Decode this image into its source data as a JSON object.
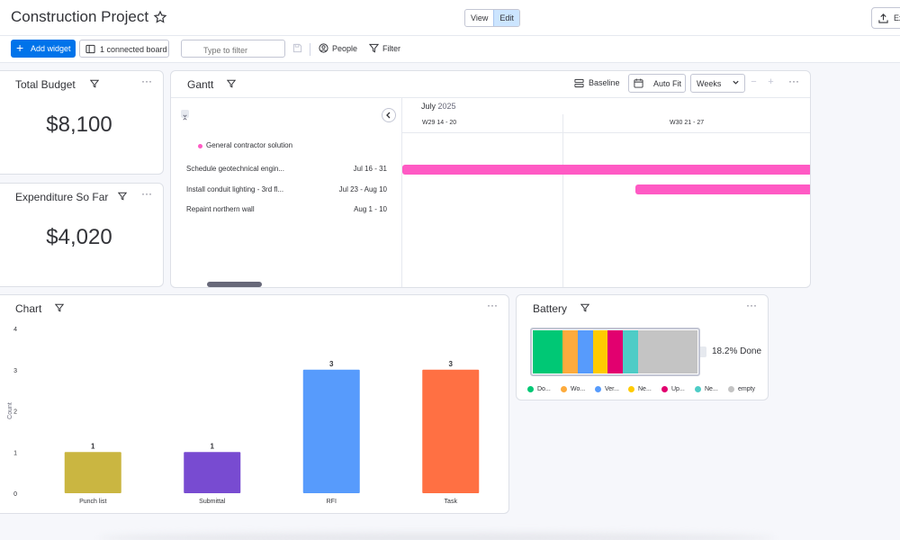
{
  "header": {
    "title": "Construction Project",
    "view_label": "View",
    "edit_label": "Edit",
    "export_label": "Ex"
  },
  "toolbar": {
    "add_widget_label": "Add widget",
    "connected_board_label": "1 connected board",
    "filter_placeholder": "Type to filter",
    "people_label": "People",
    "filter_label": "Filter"
  },
  "widgets": {
    "total_budget": {
      "title": "Total Budget",
      "value": "$8,100"
    },
    "expenditure": {
      "title": "Expenditure So Far",
      "value": "$4,020"
    },
    "gantt": {
      "title": "Gantt",
      "baseline_label": "Baseline",
      "auto_fit_label": "Auto Fit",
      "scale_label": "Weeks",
      "zoom_out": "−",
      "zoom_in": "+",
      "month": "July",
      "year": "2025",
      "weeks": [
        "W29 14 - 20",
        "W30 21 - 27"
      ],
      "group_name": "General contractor solution",
      "group_color": "#ff5ac4",
      "tasks": [
        {
          "name": "Schedule geotechnical engin...",
          "dates": "Jul 16 - 31"
        },
        {
          "name": "Install conduit lighting - 3rd fl...",
          "dates": "Jul 23 - Aug 10"
        },
        {
          "name": "Repaint northern wall",
          "dates": "Aug 1 - 10"
        }
      ]
    },
    "chart": {
      "title": "Chart"
    },
    "battery": {
      "title": "Battery",
      "done_label": "18.2% Done",
      "segments": [
        {
          "label": "Do...",
          "color": "#00c875",
          "fraction": 0.182
        },
        {
          "label": "Wo...",
          "color": "#fdab3d",
          "fraction": 0.091
        },
        {
          "label": "Ver...",
          "color": "#579bfc",
          "fraction": 0.091
        },
        {
          "label": "Ne...",
          "color": "#ffcb00",
          "fraction": 0.091
        },
        {
          "label": "Up...",
          "color": "#e2006f",
          "fraction": 0.091
        },
        {
          "label": "Ne...",
          "color": "#4eccc6",
          "fraction": 0.091
        },
        {
          "label": "empty",
          "color": "#c4c4c4",
          "fraction": 0.363
        }
      ]
    }
  },
  "chart_data": {
    "type": "bar",
    "categories": [
      "Punch list",
      "Submittal",
      "RFI",
      "Task"
    ],
    "values": [
      1,
      1,
      3,
      3
    ],
    "colors": [
      "#cab641",
      "#784bd1",
      "#579bfc",
      "#ff7043"
    ],
    "ylabel": "Count",
    "ylim": [
      0,
      4
    ],
    "yticks": [
      0,
      1,
      2,
      3,
      4
    ],
    "data_labels": true,
    "grid": false
  }
}
